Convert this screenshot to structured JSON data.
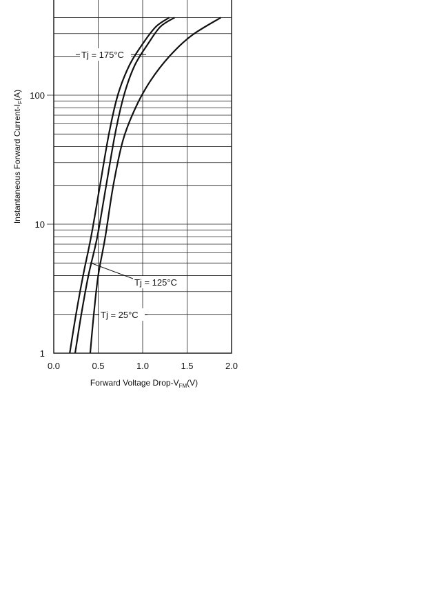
{
  "chart_data": {
    "type": "line",
    "xlabel": {
      "main": "Forward Voltage Drop-V",
      "sub": "FM",
      "unit": "(V)"
    },
    "ylabel": {
      "main": "Instantaneous Forward Current-I",
      "sub": "F",
      "unit": "(A)"
    },
    "x_ticks": [
      "0.0",
      "0.5",
      "1.0",
      "1.5",
      "2.0"
    ],
    "y_ticks": [
      "1",
      "10",
      "100"
    ],
    "xlim": [
      0,
      2.0
    ],
    "ylim": [
      1,
      400
    ],
    "y_scale": "log",
    "grid": true,
    "series": [
      {
        "name": "Tj = 175°C",
        "x": [
          0.18,
          0.25,
          0.33,
          0.42,
          0.52,
          0.62,
          0.72,
          0.85,
          1.0,
          1.15,
          1.3
        ],
        "y": [
          1,
          2,
          4,
          8,
          20,
          50,
          100,
          170,
          250,
          340,
          400
        ]
      },
      {
        "name": "Tj = 125°C",
        "x": [
          0.24,
          0.31,
          0.39,
          0.49,
          0.59,
          0.69,
          0.79,
          0.91,
          1.06,
          1.2,
          1.36
        ],
        "y": [
          1,
          2,
          4,
          8,
          20,
          50,
          100,
          170,
          250,
          340,
          400
        ]
      },
      {
        "name": "Tj = 25°C",
        "x": [
          0.41,
          0.45,
          0.5,
          0.58,
          0.67,
          0.78,
          0.92,
          1.09,
          1.3,
          1.55,
          1.88
        ],
        "y": [
          1,
          2,
          4,
          8,
          20,
          45,
          80,
          130,
          200,
          290,
          400
        ]
      }
    ],
    "annotations": [
      "Tj = 175°C",
      "Tj = 125°C",
      "Tj = 25°C"
    ]
  }
}
